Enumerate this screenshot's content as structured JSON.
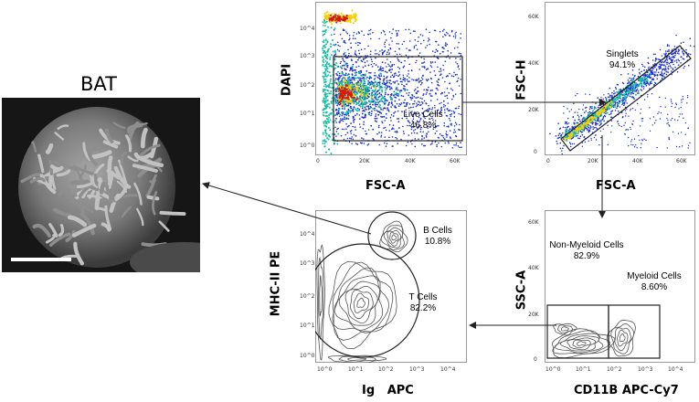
{
  "bat_panel": {
    "title": "BAT"
  },
  "plots": {
    "live": {
      "ylabel": "DAPI",
      "xlabel": "FSC-A",
      "gate_name": "Live Cells",
      "gate_pct": "46.8%",
      "y_ticks": [
        "10^0",
        "10^1",
        "10^2",
        "10^3",
        "10^4"
      ],
      "x_ticks": [
        "0",
        "20K",
        "40K",
        "60K"
      ]
    },
    "singlets": {
      "ylabel": "FSC-H",
      "xlabel": "FSC-A",
      "gate_name": "Singlets",
      "gate_pct": "94.1%",
      "y_ticks": [
        "0",
        "20K",
        "40K",
        "60K"
      ],
      "x_ticks": [
        "0",
        "20K",
        "40K",
        "60K"
      ]
    },
    "myeloid": {
      "ylabel": "SSC-A",
      "xlabel": "CD11B APC-Cy7",
      "gate1_name": "Non-Myeloid Cells",
      "gate1_pct": "82.9%",
      "gate2_name": "Myeloid Cells",
      "gate2_pct": "8.60%",
      "y_ticks": [
        "0",
        "20K",
        "40K",
        "60K"
      ],
      "x_ticks": [
        "10^0",
        "10^1",
        "10^2",
        "10^3",
        "10^4"
      ]
    },
    "tb": {
      "ylabel": "MHC-II PE",
      "xlabel": "Ig   APC",
      "gate1_name": "B Cells",
      "gate1_pct": "10.8%",
      "gate2_name": "T Cells",
      "gate2_pct": "82.2%",
      "y_ticks": [
        "10^0",
        "10^1",
        "10^2",
        "10^3",
        "10^4"
      ],
      "x_ticks": [
        "10^0",
        "10^1",
        "10^2",
        "10^3",
        "10^4"
      ]
    }
  },
  "colors": {
    "dot_dense": "#d21a10",
    "dot_mid": "#f4d000",
    "dot_low": "#14c0a0",
    "dot_sparse": "#1a2fd0",
    "contour": "#555555"
  }
}
